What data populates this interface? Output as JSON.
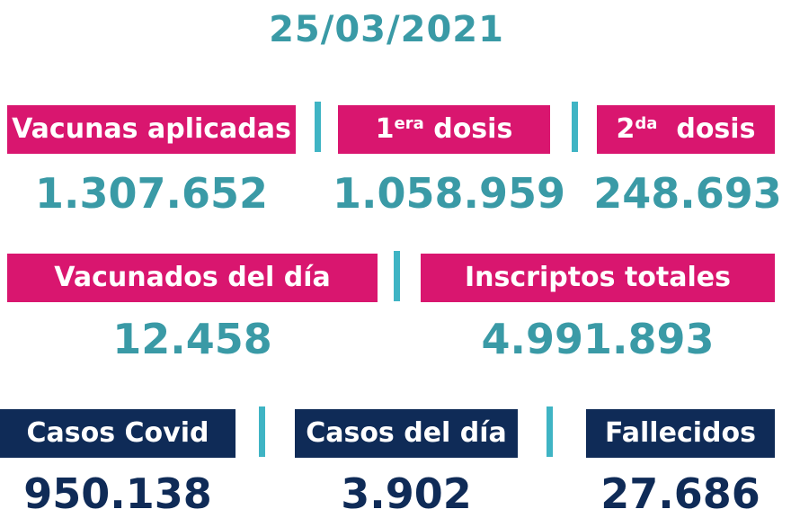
{
  "date": "25/03/2021",
  "row1": {
    "applied": {
      "label": "Vacunas aplicadas",
      "value": "1.307.652"
    },
    "first_dose": {
      "label_num": "1",
      "label_sup": "era",
      "label_rest": " dosis",
      "value": "1.058.959"
    },
    "second_dose": {
      "label_num": "2",
      "label_sup": "da",
      "label_rest": "  dosis",
      "value": "248.693"
    }
  },
  "row2": {
    "vaccinated_today": {
      "label": "Vacunados del día",
      "value": "12.458"
    },
    "registered_total": {
      "label": "Inscriptos totales",
      "value": "4.991.893"
    }
  },
  "row3": {
    "covid_cases": {
      "label": "Casos Covid",
      "value": "950.138"
    },
    "cases_today": {
      "label": "Casos del día",
      "value": "3.902"
    },
    "deaths": {
      "label": "Fallecidos",
      "value": "27.686"
    }
  },
  "colors": {
    "pink": "#d9166f",
    "navy": "#0f2b57",
    "teal": "#3a9aa6",
    "separator": "#3fb4c4"
  }
}
